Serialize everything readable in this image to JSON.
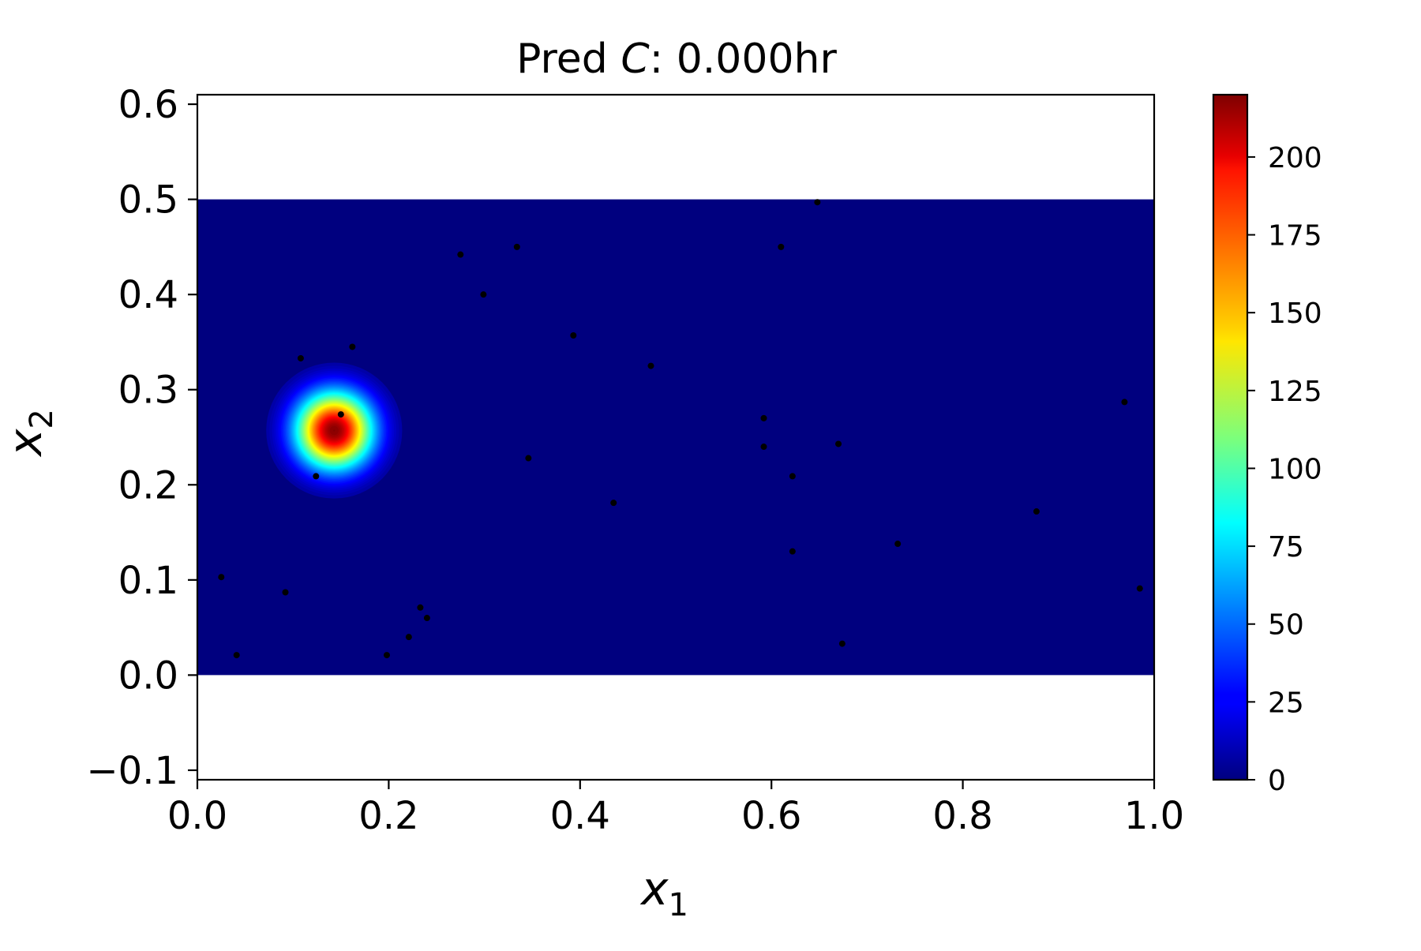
{
  "chart_data": {
    "type": "heatmap",
    "title": {
      "prefix": "Pred ",
      "variable": "C",
      "suffix": ":  0.000hr"
    },
    "xlabel": {
      "symbol": "x",
      "subscript": "1"
    },
    "ylabel": {
      "symbol": "x",
      "subscript": "2"
    },
    "xlim": [
      0.0,
      1.0
    ],
    "ylim": [
      -0.11,
      0.61
    ],
    "field_extent": {
      "x": [
        0.0,
        1.0
      ],
      "y": [
        0.0,
        0.5
      ]
    },
    "x_ticks": [
      {
        "value": 0.0,
        "label": "0.0"
      },
      {
        "value": 0.2,
        "label": "0.2"
      },
      {
        "value": 0.4,
        "label": "0.4"
      },
      {
        "value": 0.6,
        "label": "0.6"
      },
      {
        "value": 0.8,
        "label": "0.8"
      },
      {
        "value": 1.0,
        "label": "1.0"
      }
    ],
    "y_ticks": [
      {
        "value": -0.1,
        "label": "−0.1"
      },
      {
        "value": 0.0,
        "label": "0.0"
      },
      {
        "value": 0.1,
        "label": "0.1"
      },
      {
        "value": 0.2,
        "label": "0.2"
      },
      {
        "value": 0.3,
        "label": "0.3"
      },
      {
        "value": 0.4,
        "label": "0.4"
      },
      {
        "value": 0.5,
        "label": "0.5"
      },
      {
        "value": 0.6,
        "label": "0.6"
      }
    ],
    "colormap": "jet",
    "colorbar": {
      "min": 0,
      "max": 220,
      "ticks": [
        {
          "value": 0,
          "label": "0"
        },
        {
          "value": 25,
          "label": "25"
        },
        {
          "value": 50,
          "label": "50"
        },
        {
          "value": 75,
          "label": "75"
        },
        {
          "value": 100,
          "label": "100"
        },
        {
          "value": 125,
          "label": "125"
        },
        {
          "value": 150,
          "label": "150"
        },
        {
          "value": 175,
          "label": "175"
        },
        {
          "value": 200,
          "label": "200"
        }
      ]
    },
    "source": {
      "center_x": 0.143,
      "center_y": 0.257,
      "peak": 220,
      "sigma": 0.028
    },
    "sensor_points": [
      {
        "x": 0.025,
        "y": 0.103
      },
      {
        "x": 0.041,
        "y": 0.021
      },
      {
        "x": 0.092,
        "y": 0.087
      },
      {
        "x": 0.108,
        "y": 0.333
      },
      {
        "x": 0.124,
        "y": 0.209
      },
      {
        "x": 0.15,
        "y": 0.274
      },
      {
        "x": 0.162,
        "y": 0.345
      },
      {
        "x": 0.198,
        "y": 0.021
      },
      {
        "x": 0.221,
        "y": 0.04
      },
      {
        "x": 0.233,
        "y": 0.071
      },
      {
        "x": 0.24,
        "y": 0.06
      },
      {
        "x": 0.275,
        "y": 0.442
      },
      {
        "x": 0.299,
        "y": 0.4
      },
      {
        "x": 0.334,
        "y": 0.45
      },
      {
        "x": 0.346,
        "y": 0.228
      },
      {
        "x": 0.393,
        "y": 0.357
      },
      {
        "x": 0.435,
        "y": 0.181
      },
      {
        "x": 0.474,
        "y": 0.325
      },
      {
        "x": 0.592,
        "y": 0.27
      },
      {
        "x": 0.592,
        "y": 0.24
      },
      {
        "x": 0.61,
        "y": 0.45
      },
      {
        "x": 0.622,
        "y": 0.209
      },
      {
        "x": 0.622,
        "y": 0.13
      },
      {
        "x": 0.648,
        "y": 0.497
      },
      {
        "x": 0.67,
        "y": 0.243
      },
      {
        "x": 0.674,
        "y": 0.033
      },
      {
        "x": 0.732,
        "y": 0.138
      },
      {
        "x": 0.877,
        "y": 0.172
      },
      {
        "x": 0.969,
        "y": 0.287
      },
      {
        "x": 0.985,
        "y": 0.091
      }
    ]
  }
}
